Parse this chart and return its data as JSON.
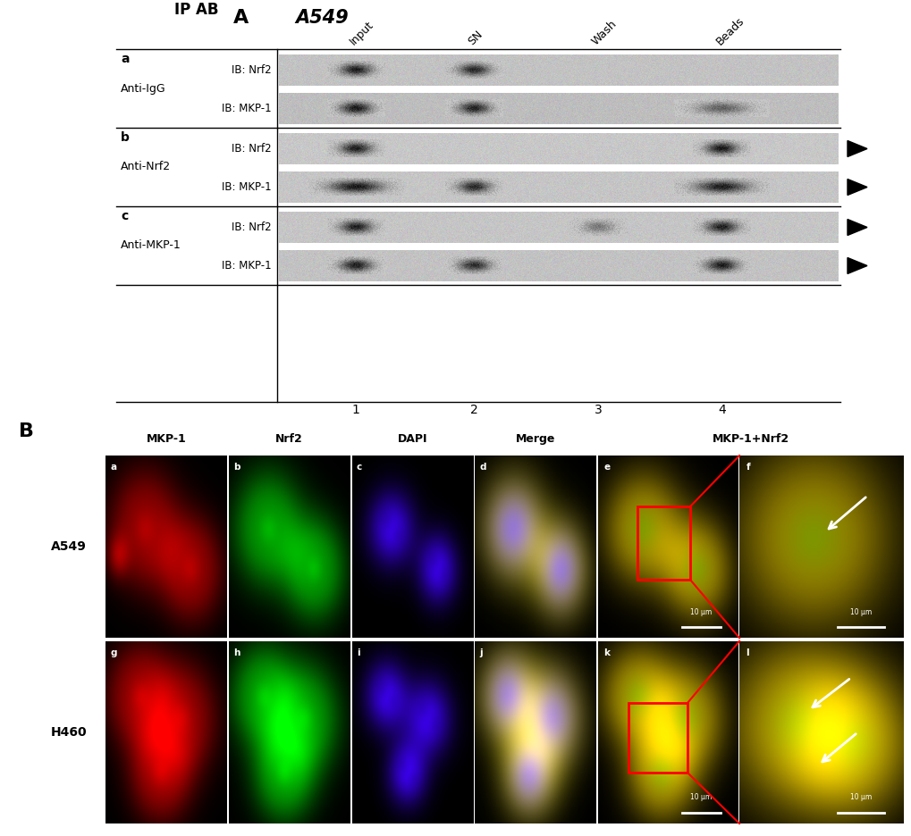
{
  "panel_A_title": "A",
  "panel_A_subtitle": "A549",
  "panel_B_title": "B",
  "ip_ab_label": "IP AB",
  "row_labels": [
    "a",
    "b",
    "c"
  ],
  "row_antibodies": [
    "Anti-IgG",
    "Anti-Nrf2",
    "Anti-MKP-1"
  ],
  "ib_labels_nrf2": "IB: Nrf2",
  "ib_labels_mkp1": "IB: MKP-1",
  "col_headers": [
    "Input",
    "SN",
    "Wash",
    "Beads"
  ],
  "col_numbers": [
    "1",
    "2",
    "3",
    "4"
  ],
  "microscopy_col_headers": [
    "MKP-1",
    "Nrf2",
    "DAPI",
    "Merge",
    "MKP-1+Nrf2"
  ],
  "cell_line_labels": [
    "A549",
    "H460"
  ],
  "panel_labels_row1": [
    "a",
    "b",
    "c",
    "d",
    "e",
    "f"
  ],
  "panel_labels_row2": [
    "g",
    "h",
    "i",
    "j",
    "k",
    "l"
  ],
  "scale_bar_text": "10 μm",
  "background_color": "#ffffff"
}
